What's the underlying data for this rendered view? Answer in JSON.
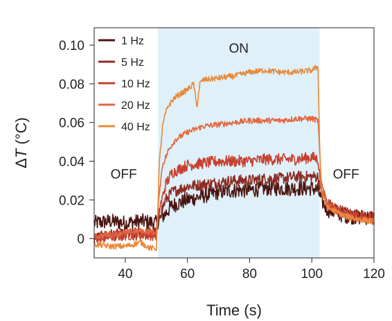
{
  "chart_data": {
    "type": "line",
    "xlabel": "Time (s)",
    "ylabel_prefix": "Δ",
    "ylabel_var": "T",
    "ylabel_suffix": " (°C)",
    "xlim": [
      30,
      120
    ],
    "ylim": [
      -0.01,
      0.109
    ],
    "xticks": [
      40,
      60,
      80,
      100,
      120
    ],
    "yticks": [
      0,
      0.02,
      0.04,
      0.06,
      0.08,
      0.1
    ],
    "ytick_labels": [
      "0",
      "0.02",
      "0.04",
      "0.06",
      "0.08",
      "0.10"
    ],
    "grid": false,
    "legend_position": "top-left",
    "shaded_region": {
      "x_start": 50.5,
      "x_end": 102.5,
      "color": "#dff0f9",
      "label": "ON"
    },
    "annotations": [
      {
        "text": "OFF",
        "x": 39.5,
        "y": 0.031
      },
      {
        "text": "OFF",
        "x": 111,
        "y": 0.031
      }
    ],
    "series": [
      {
        "name": "1 Hz",
        "color": "#4a1510",
        "x": [
          30,
          35,
          40,
          45,
          50,
          51,
          53,
          55,
          60,
          65,
          70,
          75,
          80,
          85,
          90,
          95,
          100,
          102,
          103,
          105,
          110,
          115,
          120
        ],
        "values": [
          0.008,
          0.009,
          0.008,
          0.009,
          0.008,
          0.01,
          0.013,
          0.017,
          0.02,
          0.022,
          0.024,
          0.025,
          0.025,
          0.026,
          0.026,
          0.026,
          0.026,
          0.025,
          0.02,
          0.015,
          0.012,
          0.011,
          0.011
        ],
        "noise": 0.004
      },
      {
        "name": "5 Hz",
        "color": "#8c2b22",
        "x": [
          30,
          35,
          40,
          45,
          50,
          51,
          53,
          55,
          60,
          65,
          70,
          75,
          80,
          85,
          90,
          95,
          100,
          102,
          103,
          105,
          110,
          115,
          120
        ],
        "values": [
          0.0,
          0.002,
          0.002,
          0.003,
          0.003,
          0.012,
          0.02,
          0.024,
          0.027,
          0.028,
          0.029,
          0.03,
          0.03,
          0.031,
          0.031,
          0.032,
          0.032,
          0.032,
          0.024,
          0.018,
          0.014,
          0.012,
          0.011
        ],
        "noise": 0.003
      },
      {
        "name": "10 Hz",
        "color": "#c8402f",
        "x": [
          30,
          35,
          40,
          45,
          50,
          51,
          53,
          55,
          60,
          65,
          70,
          75,
          80,
          85,
          90,
          95,
          100,
          102,
          103,
          105,
          110,
          115,
          120
        ],
        "values": [
          0.0,
          0.001,
          0.002,
          0.002,
          0.002,
          0.015,
          0.028,
          0.034,
          0.038,
          0.039,
          0.04,
          0.04,
          0.04,
          0.041,
          0.041,
          0.041,
          0.042,
          0.041,
          0.026,
          0.018,
          0.013,
          0.011,
          0.01
        ],
        "noise": 0.003
      },
      {
        "name": "20 Hz",
        "color": "#e2663f",
        "x": [
          30,
          35,
          40,
          45,
          50,
          51,
          52,
          54,
          56,
          60,
          65,
          70,
          75,
          80,
          85,
          90,
          95,
          100,
          102,
          103,
          105,
          110,
          115,
          120
        ],
        "values": [
          0.001,
          0.002,
          0.003,
          0.004,
          0.003,
          0.025,
          0.038,
          0.046,
          0.051,
          0.055,
          0.058,
          0.059,
          0.06,
          0.061,
          0.061,
          0.061,
          0.062,
          0.062,
          0.061,
          0.03,
          0.018,
          0.012,
          0.01,
          0.009
        ],
        "noise": 0.0015
      },
      {
        "name": "40 Hz",
        "color": "#e8893a",
        "x": [
          30,
          35,
          40,
          45,
          48,
          50,
          51,
          52,
          53,
          54,
          56,
          60,
          62,
          63,
          64,
          65,
          70,
          75,
          80,
          85,
          90,
          95,
          100,
          102,
          102.5,
          103,
          105,
          110,
          115,
          120
        ],
        "values": [
          -0.003,
          -0.004,
          -0.004,
          -0.002,
          -0.005,
          -0.005,
          0.04,
          0.058,
          0.065,
          0.069,
          0.073,
          0.077,
          0.08,
          0.068,
          0.08,
          0.082,
          0.083,
          0.084,
          0.086,
          0.087,
          0.086,
          0.086,
          0.087,
          0.089,
          0.05,
          0.025,
          0.016,
          0.012,
          0.01,
          0.009
        ],
        "noise": 0.0015
      }
    ]
  }
}
